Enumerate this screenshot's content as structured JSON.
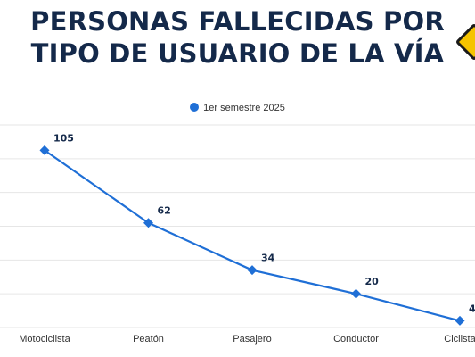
{
  "title": {
    "line1": "PERSONAS FALLECIDAS POR",
    "line2": "TIPO DE USUARIO DE LA VÍA"
  },
  "legend": {
    "label": "1er semestre 2025"
  },
  "colors": {
    "series": "#1f6fd6",
    "title": "#14294a",
    "grid": "#e6e6e6"
  },
  "icons": {
    "corner": "road-warning-sign-icon"
  },
  "chart_data": {
    "type": "line",
    "title": "PERSONAS FALLECIDAS POR TIPO DE USUARIO DE LA VÍA",
    "categories": [
      "Motociclista",
      "Peatón",
      "Pasajero",
      "Conductor",
      "Ciclista"
    ],
    "series": [
      {
        "name": "1er semestre 2025",
        "values": [
          105,
          62,
          34,
          20,
          4
        ]
      }
    ],
    "ylim": [
      0,
      120
    ],
    "grid": true,
    "legend": "top-center",
    "data_labels": true
  }
}
